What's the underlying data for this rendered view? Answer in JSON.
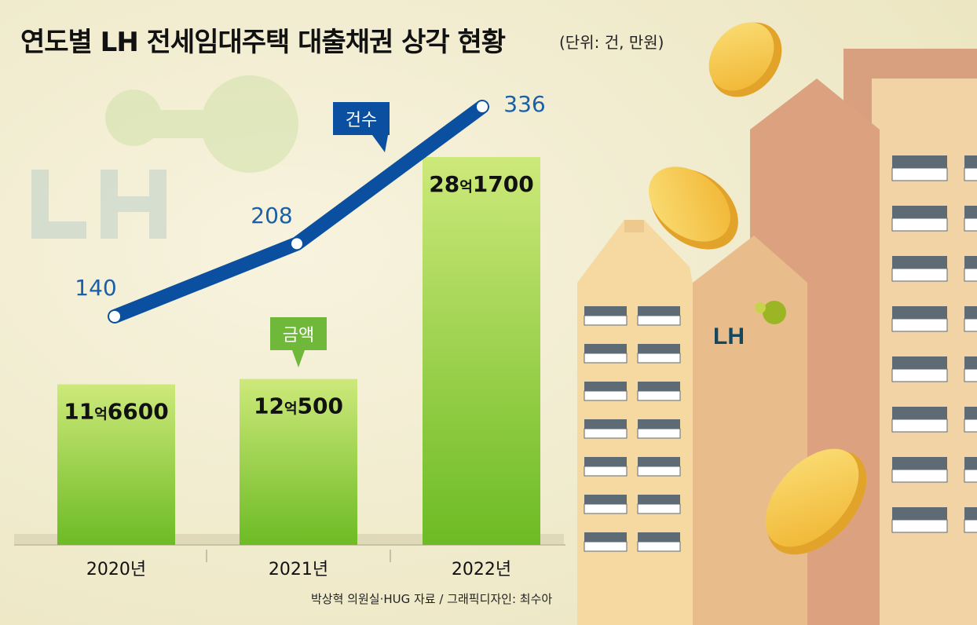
{
  "header": {
    "title": "연도별 LH 전세임대주택 대출채권 상각 현황",
    "unit": "(단위: 건, 만원)"
  },
  "footer": {
    "credit": "박상혁 의원실·HUG 자료 / 그래픽디자인: 최수아"
  },
  "illustration": {
    "logo_text": "LH"
  },
  "colors": {
    "background": "#f4f0d6",
    "bar": "#8fcc38",
    "bar_light": "#cde97a",
    "line": "#0a4fa0",
    "line_label": "#1a5fa8",
    "amount_tag": "#6fb83a",
    "count_tag": "#0a4fa0",
    "coin": "#f5c545",
    "building_a": "#f6d9a1",
    "building_b": "#e8b88a",
    "building_c": "#d9a07f"
  },
  "chart_data": {
    "type": "bar",
    "title": "연도별 LH 전세임대주택 대출채권 상각 현황",
    "unit": "(단위: 건, 만원)",
    "categories": [
      "2020년",
      "2021년",
      "2022년"
    ],
    "series": [
      {
        "name": "금액",
        "type": "bar",
        "values": [
          116600,
          120500,
          281700
        ],
        "labels": [
          "11억6600",
          "12억500",
          "28억1700"
        ]
      },
      {
        "name": "건수",
        "type": "line",
        "values": [
          140,
          208,
          336
        ],
        "labels": [
          "140",
          "208",
          "336"
        ]
      }
    ],
    "grid": false
  }
}
